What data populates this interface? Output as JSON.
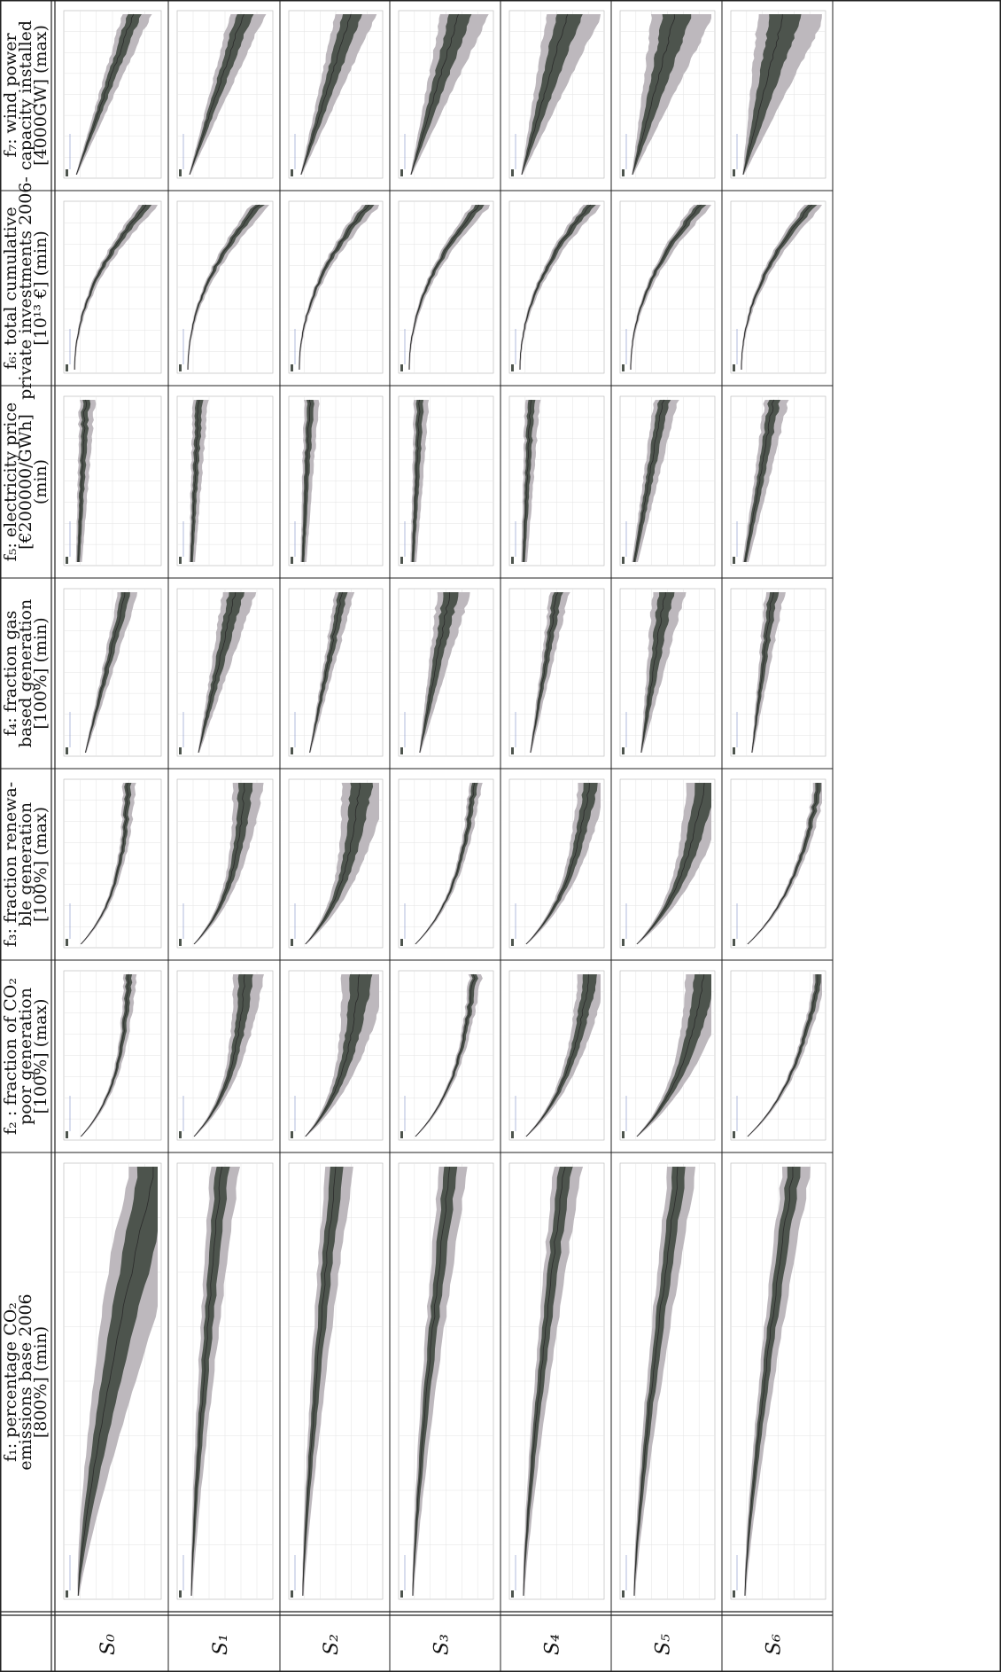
{
  "columns": [
    {
      "id": "f1",
      "lines": [
        "f₁: percentage CO₂",
        "emissions base 2006",
        "[800%] (min)"
      ],
      "shape": "explode"
    },
    {
      "id": "f2",
      "lines": [
        "f₂ : fraction of CO₂",
        "poor generation",
        "[100%] (max)"
      ],
      "shape": "rise"
    },
    {
      "id": "f3",
      "lines": [
        "f₃: fraction renewa-",
        "ble generation",
        "[100%] (max)"
      ],
      "shape": "rise"
    },
    {
      "id": "f4",
      "lines": [
        "f₄: fraction gas",
        "based generation",
        "[100%] (min)"
      ],
      "shape": "fan"
    },
    {
      "id": "f5",
      "lines": [
        "f₅: electricity price",
        "[€200000/GWh]",
        "(min)"
      ],
      "shape": "flat"
    },
    {
      "id": "f6",
      "lines": [
        "f₆: total cumulative",
        "private investments 2006-",
        "[10¹³ €] (min)"
      ],
      "shape": "curve"
    },
    {
      "id": "f7",
      "lines": [
        "f₇: wind power",
        "capacity installed",
        "[4000GW] (max)"
      ],
      "shape": "grow"
    }
  ],
  "rows": [
    "S₀",
    "S₁",
    "S₂",
    "S₃",
    "S₄",
    "S₅",
    "S₆"
  ],
  "colors": {
    "outer_band": "#bdb8bd",
    "inner_band": "#4d544d",
    "median": "#2b2b2b",
    "grid": "#e3e3e3",
    "frame": "#b5b5b5",
    "rule": "#222222",
    "legend_blue": "#7c8ec7"
  }
}
